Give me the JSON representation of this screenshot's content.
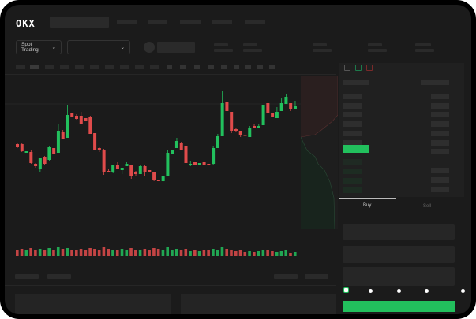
{
  "brand": {
    "logo": "OKX"
  },
  "toolbar": {
    "market_select": "Spot Trading",
    "chevron": "⌄"
  },
  "order_form": {
    "buy_tab": "Buy",
    "sell_tab": "Sell",
    "slider_value_percent": 0
  },
  "colors": {
    "up": "#22c05d",
    "down": "#e04b4b",
    "background": "#1b1b1b"
  },
  "chart_data": {
    "type": "candlestick",
    "candles": [
      [
        58,
        59,
        53,
        54
      ],
      [
        58,
        59,
        48,
        49
      ],
      [
        47,
        49,
        47,
        49
      ],
      [
        48,
        51,
        33,
        34
      ],
      [
        33,
        34,
        28,
        30
      ],
      [
        26,
        40,
        23,
        40
      ],
      [
        42,
        43,
        32,
        33
      ],
      [
        38,
        56,
        37,
        54
      ],
      [
        53,
        53,
        45,
        46
      ],
      [
        47,
        83,
        47,
        75
      ],
      [
        74,
        76,
        65,
        65
      ],
      [
        66,
        108,
        66,
        95
      ],
      [
        97,
        98,
        92,
        92
      ],
      [
        94,
        96,
        89,
        90
      ],
      [
        94,
        99,
        83,
        84
      ],
      [
        91,
        91,
        88,
        88
      ],
      [
        92,
        94,
        71,
        71
      ],
      [
        72,
        72,
        50,
        50
      ],
      [
        53,
        54,
        48,
        50
      ],
      [
        51,
        52,
        19,
        23
      ],
      [
        24,
        26,
        22,
        22
      ],
      [
        22,
        32,
        21,
        31
      ],
      [
        32,
        35,
        26,
        27
      ],
      [
        25,
        28,
        20,
        28
      ],
      [
        30,
        35,
        30,
        33
      ],
      [
        32,
        32,
        14,
        18
      ],
      [
        23,
        24,
        17,
        20
      ],
      [
        20,
        31,
        20,
        30
      ],
      [
        30,
        31,
        18,
        22
      ],
      [
        25,
        25,
        23,
        23
      ],
      [
        22,
        23,
        11,
        12
      ],
      [
        13,
        13,
        11,
        11
      ],
      [
        11,
        17,
        10,
        17
      ],
      [
        18,
        50,
        17,
        47
      ],
      [
        46,
        50,
        46,
        50
      ],
      [
        53,
        66,
        53,
        62
      ],
      [
        60,
        61,
        50,
        50
      ],
      [
        56,
        60,
        32,
        34
      ],
      [
        32,
        36,
        30,
        33
      ],
      [
        35,
        35,
        32,
        32
      ],
      [
        31,
        34,
        31,
        34
      ],
      [
        35,
        38,
        26,
        32
      ],
      [
        33,
        33,
        31,
        31
      ],
      [
        33,
        56,
        31,
        53
      ],
      [
        53,
        71,
        53,
        68
      ],
      [
        68,
        125,
        68,
        110
      ],
      [
        112,
        114,
        98,
        100
      ],
      [
        99,
        99,
        72,
        75
      ],
      [
        77,
        78,
        73,
        75
      ],
      [
        75,
        75,
        67,
        69
      ],
      [
        70,
        73,
        69,
        69
      ],
      [
        67,
        81,
        67,
        79
      ],
      [
        81,
        84,
        79,
        79
      ],
      [
        78,
        84,
        78,
        81
      ],
      [
        82,
        108,
        82,
        108
      ],
      [
        110,
        110,
        97,
        98
      ],
      [
        98,
        98,
        93,
        93
      ],
      [
        91,
        105,
        91,
        99
      ],
      [
        100,
        116,
        100,
        110
      ],
      [
        109,
        122,
        109,
        118
      ],
      [
        110,
        110,
        100,
        103
      ],
      [
        102,
        113,
        102,
        107
      ]
    ],
    "volumes": [
      8,
      9,
      7,
      10,
      8,
      9,
      7,
      10,
      8,
      11,
      9,
      10,
      7,
      8,
      9,
      7,
      10,
      9,
      8,
      11,
      9,
      8,
      7,
      9,
      8,
      10,
      7,
      8,
      9,
      8,
      10,
      9,
      7,
      11,
      8,
      9,
      7,
      9,
      6,
      7,
      6,
      8,
      7,
      9,
      8,
      11,
      9,
      8,
      6,
      7,
      5,
      6,
      5,
      6,
      8,
      7,
      6,
      5,
      6,
      7,
      4,
      5
    ],
    "grid": false
  }
}
